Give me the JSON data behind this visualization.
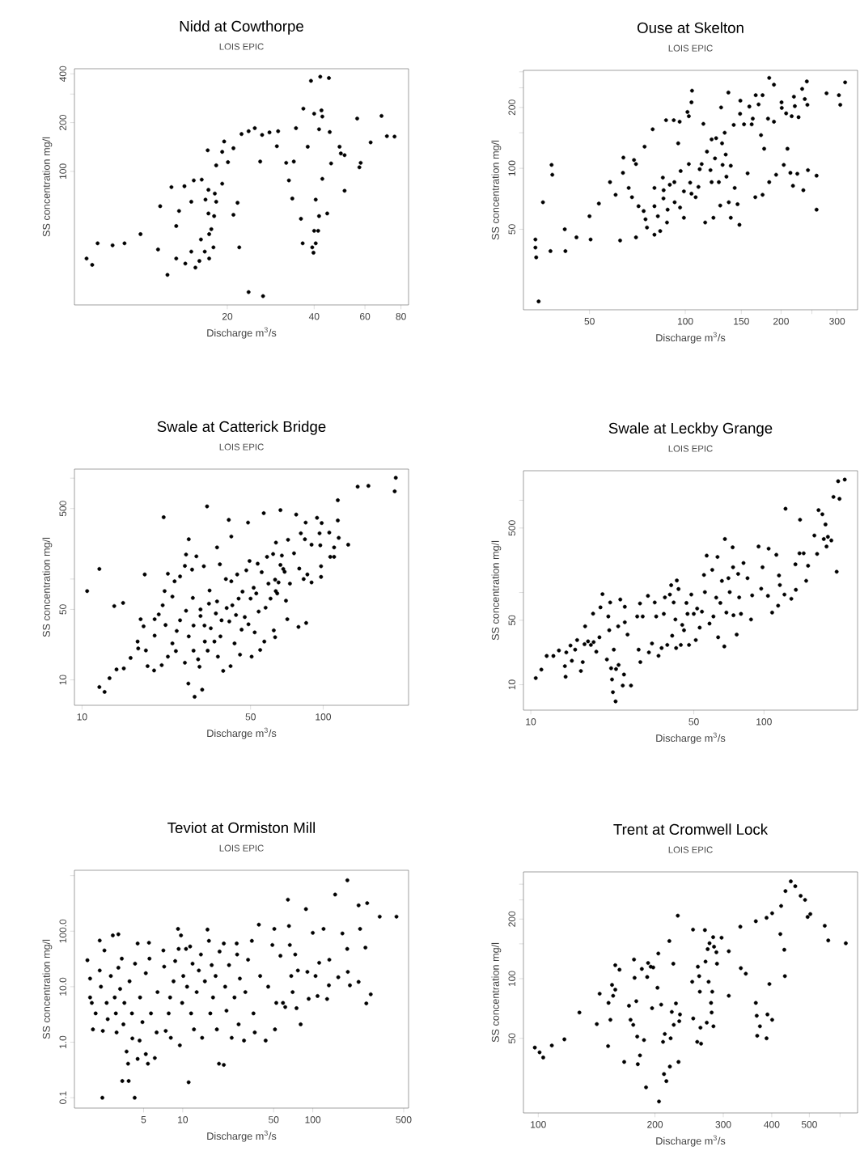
{
  "chart_data": [
    {
      "type": "scatter",
      "title": "Nidd at Cowthorpe",
      "subtitle": "LOIS EPIC",
      "xlabel": "Discharge m$^{3}$/s",
      "ylabel": "SS concentration mg/l",
      "log": "xy",
      "marker": "circle",
      "xlim": [
        5.9,
        85
      ],
      "ylim": [
        15,
        430
      ],
      "xticks": [
        20,
        40,
        60,
        80
      ],
      "yticks": [
        100,
        200,
        {
          "value": 300,
          "label": null
        },
        400
      ],
      "x": [
        6.5,
        6.8,
        7.1,
        8.0,
        8.8,
        10,
        11.5,
        11.7,
        12.4,
        12.8,
        13.3,
        13.3,
        13.6,
        14.2,
        14.3,
        15,
        15,
        15.3,
        15.5,
        16,
        16.3,
        16.2,
        16.7,
        16.8,
        17.2,
        17.2,
        17.3,
        17.6,
        17.3,
        17.9,
        18,
        18.3,
        18.1,
        18.3,
        17.1,
        19.2,
        19.2,
        19.5,
        20.1,
        21,
        21,
        21.7,
        22,
        22.4,
        23.7,
        23.7,
        24.9,
        26,
        26.4,
        26.6,
        28,
        30,
        29.7,
        32,
        32.7,
        33.6,
        34,
        34.6,
        36,
        36.5,
        36.7,
        38,
        39,
        39.4,
        39.8,
        40,
        40.5,
        40.5,
        40,
        41.3,
        41.6,
        41.6,
        42,
        42.4,
        42.7,
        42.7,
        44.4,
        45,
        45.3,
        45.8,
        49,
        49.5,
        51,
        51,
        57.4,
        58,
        56.4,
        62.8,
        68.5,
        71.5,
        76
      ],
      "series": [
        {
          "color": "#000000",
          "values": [
            29,
            26.5,
            36,
            35,
            36,
            41,
            33,
            61,
            23,
            80,
            29,
            46,
            57,
            81,
            27,
            32,
            65,
            88,
            25.5,
            28,
            89,
            38,
            32,
            67,
            77,
            55,
            41,
            44,
            29,
            34,
            53,
            65,
            73,
            109,
            135,
            84,
            132,
            153,
            114,
            139,
            54,
            64,
            34,
            170,
            177,
            18,
            185,
            115,
            168,
            17,
            174,
            177,
            143,
            113,
            88,
            68,
            115,
            185,
            51,
            36,
            244,
            142,
            362,
            34,
            31.5,
            227,
            67,
            36,
            43,
            43,
            53,
            182,
            384,
            238,
            218,
            90,
            55,
            377,
            175,
            112,
            142,
            129,
            126,
            76,
            106,
            113,
            212,
            151,
            220,
            165,
            164
          ]
        }
      ]
    },
    {
      "type": "scatter",
      "title": "Ouse at Skelton",
      "subtitle": "LOIS EPIC",
      "xlabel": "Discharge m$^{3}$/s",
      "ylabel": "SS concentration mg/l",
      "log": "xy",
      "marker": "circle",
      "xlim": [
        31,
        348
      ],
      "ylim": [
        20,
        305
      ],
      "xticks": [
        50,
        100,
        150,
        200,
        {
          "value": 250,
          "label": null
        },
        300
      ],
      "yticks": [
        50,
        100,
        {
          "value": 150,
          "label": null
        },
        200,
        {
          "value": 250,
          "label": null
        },
        {
          "value": 300,
          "label": null
        }
      ],
      "x": [
        34.6,
        33.8,
        33.8,
        34,
        35.7,
        37.7,
        38,
        38.2,
        41.8,
        42,
        45.5,
        50,
        50.4,
        53.5,
        58,
        60.4,
        62.4,
        63.7,
        63.9,
        66.4,
        68,
        69,
        70,
        70,
        71.3,
        74.5,
        74,
        75,
        75.8,
        79,
        80,
        80,
        80,
        82,
        83.4,
        85,
        85.4,
        85.5,
        87,
        87.6,
        88,
        89.4,
        92,
        92.4,
        92.6,
        95,
        96,
        96.7,
        96.3,
        99,
        99,
        101.6,
        102.6,
        102.6,
        103.6,
        104.6,
        105,
        104.6,
        107.8,
        110,
        111,
        112.6,
        114,
        115.5,
        117,
        120,
        121,
        121,
        122.6,
        124,
        125,
        127.5,
        128.8,
        129.6,
        130.5,
        131,
        133,
        134,
        134.7,
        136.6,
        137,
        139,
        139,
        142,
        143,
        146,
        148,
        149,
        148.7,
        153,
        157,
        159,
        161.7,
        163,
        166,
        166.5,
        170,
        173,
        175,
        175,
        177,
        182,
        183.6,
        183.6,
        190,
        190,
        193,
        200.7,
        201,
        204,
        207.5,
        209.5,
        214,
        216,
        218,
        221,
        219.5,
        225,
        227,
        235,
        237.5,
        233,
        241,
        242,
        243,
        258.6,
        258.6,
        278,
        304,
        307,
        318
      ],
      "series": [
        {
          "color": "#000000",
          "values": [
            22,
            44.5,
            40.6,
            36.3,
            68,
            39,
            104,
            93,
            50,
            39,
            45.6,
            58,
            44.5,
            67,
            85.5,
            74,
            44,
            95,
            113,
            80,
            72,
            110,
            105,
            45.6,
            65,
            128,
            61.5,
            56,
            51,
            156,
            65,
            47,
            80,
            58,
            49,
            90,
            71,
            78,
            173,
            54,
            62.5,
            83,
            173,
            85.5,
            68,
            133,
            170,
            97,
            64,
            57,
            77,
            190,
            181,
            105,
            85,
            212,
            242,
            75,
            72,
            81,
            99,
            105,
            166,
            54,
            121,
            98,
            139,
            85.5,
            57,
            112,
            141,
            85.5,
            65.5,
            200,
            133,
            104,
            150,
            117,
            91,
            237,
            68,
            103,
            57,
            164,
            80,
            66.5,
            52.6,
            216,
            186,
            165,
            94.5,
            202,
            165,
            176,
            72,
            230,
            207,
            146,
            230,
            74,
            125,
            176,
            280,
            85.5,
            259,
            170,
            93,
            212,
            199,
            104,
            187,
            125,
            95,
            181,
            82,
            203,
            226,
            94,
            179,
            78,
            220,
            247,
            269,
            206,
            98,
            92,
            62.5,
            235,
            230,
            206,
            266
          ]
        }
      ]
    },
    {
      "type": "scatter",
      "title": "Swale at Catterick Bridge",
      "subtitle": "LOIS EPIC",
      "xlabel": "Discharge m$^{3}$/s",
      "ylabel": "SS concentration mg/l",
      "log": "xy",
      "marker": "circle",
      "xlim": [
        9.3,
        226
      ],
      "ylim": [
        5.6,
        1230
      ],
      "xticks": [
        10,
        50,
        100
      ],
      "yticks": [
        10,
        50,
        {
          "value": 100,
          "label": null
        },
        500,
        {
          "value": 1000,
          "label": null
        }
      ],
      "x": [
        10.5,
        11.8,
        11.8,
        12.4,
        13,
        13.6,
        13.9,
        14.8,
        14.9,
        15.9,
        17,
        17.1,
        17.5,
        18,
        18.2,
        18.4,
        18.7,
        19.9,
        20,
        20,
        20.8,
        21.4,
        21.6,
        21.8,
        22,
        22.2,
        22.7,
        22.7,
        23.7,
        23.7,
        24.2,
        24.5,
        24.7,
        25.5,
        25.5,
        26.7,
        26.7,
        27,
        27,
        27.7,
        27.6,
        27.7,
        28.6,
        28.8,
        29,
        29,
        29.3,
        29.8,
        30.3,
        30.7,
        31,
        31.5,
        32,
        31,
        32.2,
        32.3,
        33,
        33.2,
        33.6,
        33.8,
        34.2,
        35.4,
        35.9,
        36.3,
        36.3,
        36.6,
        37.5,
        37.3,
        37.9,
        38.5,
        39.5,
        39.8,
        40.6,
        40.8,
        41.3,
        41.6,
        41.6,
        42,
        42.9,
        43.5,
        44,
        44.6,
        45.2,
        45.9,
        46.3,
        47.3,
        48,
        48.8,
        49,
        49.5,
        50,
        50.5,
        51.5,
        52,
        52.8,
        53.5,
        54,
        54.8,
        55.6,
        56.7,
        57,
        57.7,
        58.5,
        59.3,
        60.5,
        62,
        62.4,
        63.2,
        63.2,
        63.6,
        63.7,
        64.5,
        65.3,
        66.5,
        66.5,
        67.4,
        68.3,
        69.2,
        70.1,
        71,
        71.5,
        72.8,
        75.7,
        77.3,
        79,
        79.6,
        80.8,
        83,
        84,
        84.6,
        85,
        86,
        89.5,
        89.5,
        94.3,
        96.6,
        98,
        98,
        98.6,
        97.3,
        106,
        107,
        111,
        111,
        115,
        115,
        116,
        127,
        139,
        154,
        198,
        200
      ],
      "series": [
        {
          "color": "#000000",
          "values": [
            76,
            126,
            8.5,
            7.6,
            10.4,
            54,
            12.7,
            58,
            13,
            16.5,
            24,
            20.5,
            40,
            34,
            111,
            19.6,
            13.7,
            12.4,
            27.5,
            40,
            44.6,
            14,
            55,
            410,
            76,
            35,
            17,
            113,
            67,
            23,
            95,
            19.3,
            30.6,
            106,
            39,
            135,
            14.8,
            48.5,
            175,
            248,
            9.2,
            27,
            124,
            65,
            34.6,
            19.5,
            6.8,
            168,
            16,
            13.5,
            50,
            8,
            134,
            43,
            34.6,
            24,
            525,
            19.5,
            57,
            77,
            32.5,
            24,
            45.6,
            60,
            206,
            17,
            27,
            140,
            39,
            12.3,
            100,
            51.6,
            386,
            38,
            13.7,
            264,
            95,
            55,
            23,
            44,
            111,
            64,
            17.8,
            31.5,
            75,
            42,
            122,
            363,
            35.6,
            151,
            64,
            17,
            82,
            29.6,
            72,
            142,
            47.6,
            19.8,
            117,
            450,
            24,
            52,
            166,
            90,
            64,
            177,
            31,
            26.5,
            98.5,
            76,
            230,
            72,
            92.5,
            482,
            138,
            171,
            126,
            118,
            61,
            40,
            245,
            90,
            180,
            436,
            33.5,
            127,
            284,
            100,
            248,
            363,
            36.7,
            111,
            92.5,
            219,
            405,
            284,
            134,
            105,
            359,
            216,
            289,
            166,
            206,
            166,
            605,
            381,
            256,
            219,
            824,
            839,
            741,
            1009
          ]
        }
      ]
    },
    {
      "type": "scatter",
      "title": "Swale at Leckby Grange",
      "subtitle": "LOIS EPIC",
      "xlabel": "Discharge m$^{3}$/s",
      "ylabel": "SS concentration mg/l",
      "log": "xy",
      "marker": "circle",
      "xlim": [
        9.3,
        252
      ],
      "ylim": [
        5.3,
        2090
      ],
      "xticks": [
        10,
        50,
        100
      ],
      "yticks": [
        10,
        50,
        {
          "value": 100,
          "label": null
        },
        500,
        {
          "value": 1000,
          "label": null
        }
      ],
      "x": [
        10.5,
        11.1,
        11.7,
        12.5,
        13.2,
        14,
        14.1,
        14.2,
        14.8,
        15,
        15.5,
        15.8,
        16.4,
        16.7,
        17,
        17.1,
        17.6,
        18.1,
        18.5,
        18.6,
        19.1,
        19.7,
        19.9,
        20.3,
        21.2,
        21.5,
        21.7,
        21.9,
        22.1,
        22.3,
        22.5,
        22.7,
        23.1,
        23.2,
        23.7,
        23.8,
        24.2,
        24.8,
        25.1,
        25.3,
        25.3,
        26,
        26.9,
        28.6,
        29,
        29.4,
        29.5,
        30.2,
        31.8,
        32.1,
        33.1,
        34,
        34.5,
        35.3,
        36.4,
        37.2,
        37.6,
        38.5,
        39.5,
        40,
        40.4,
        41,
        41.7,
        42,
        42.3,
        43,
        44,
        44.6,
        45.4,
        46.5,
        47,
        47.7,
        48.8,
        50,
        51,
        51.7,
        53,
        54.2,
        55.3,
        55.8,
        56.8,
        58.4,
        60,
        60.7,
        62.4,
        63.6,
        63.2,
        65,
        66,
        67.6,
        68,
        69,
        70.4,
        71.3,
        73.4,
        73.7,
        74,
        76.4,
        77.5,
        78.3,
        79.7,
        81.7,
        85,
        88,
        89,
        94.8,
        97.3,
        98.6,
        104,
        104.7,
        108.4,
        113,
        115,
        116,
        117,
        122.4,
        123.7,
        131,
        136.4,
        137,
        142,
        142.8,
        148,
        151.7,
        154.6,
        164.5,
        169,
        171.4,
        178,
        180.5,
        183.6,
        185.5,
        188,
        194.5,
        198.6,
        205,
        208,
        210.8,
        222
      ],
      "series": [
        {
          "color": "#000000",
          "values": [
            11.8,
            14.6,
            20.5,
            20.5,
            23.5,
            15.9,
            12.2,
            22.4,
            26.6,
            18.2,
            24,
            30.5,
            14.1,
            17.6,
            27.5,
            43,
            29.5,
            27,
            59,
            29,
            22.8,
            32.7,
            69,
            96,
            18.8,
            55,
            39,
            78,
            15.1,
            11.4,
            8.3,
            24,
            6.6,
            14.8,
            43,
            16.4,
            84,
            9.8,
            12.9,
            70,
            47.6,
            35,
            9.8,
            55,
            24,
            76,
            17.6,
            55,
            92,
            22.4,
            28,
            78,
            55,
            20.6,
            25,
            58.6,
            88.5,
            27,
            95,
            120,
            34,
            78,
            51,
            25,
            135,
            109,
            27,
            44.5,
            39,
            77,
            58.6,
            27,
            95,
            58.6,
            30.5,
            67,
            41.6,
            62,
            155,
            101,
            251,
            46,
            176,
            55,
            88,
            32.7,
            243,
            77,
            133.6,
            26,
            380,
            60.6,
            143,
            101,
            309,
            188,
            56.6,
            35,
            159,
            88.5,
            58.6,
            209,
            143,
            51,
            93,
            315,
            110,
            188,
            92,
            299,
            60.6,
            256,
            72,
            153,
            120.5,
            95,
            809,
            85.5,
            202,
            107,
            266,
            615,
            266,
            134,
            195,
            415,
            262,
            782,
            705,
            380,
            547,
            315,
            401,
            367,
            1087,
            168,
            1608,
            1036,
            1676
          ]
        }
      ]
    },
    {
      "type": "scatter",
      "title": "Teviot at Ormiston Mill",
      "subtitle": "LOIS EPIC",
      "xlabel": "Discharge m$^{3}$/s",
      "ylabel": "SS concentration mg/l",
      "log": "xy",
      "marker": "circle",
      "xlim": [
        1.47,
        545
      ],
      "ylim": [
        0.065,
        1250
      ],
      "xticks": [
        5,
        10,
        50,
        100,
        500
      ],
      "yticks": [
        {
          "value": 0.1,
          "label": "0.1"
        },
        {
          "value": 1,
          "label": "1.0"
        },
        {
          "value": 10,
          "label": "10.0"
        },
        {
          "value": 100,
          "label": "100.0"
        },
        {
          "value": 1000,
          "label": null
        }
      ],
      "x": [
        1.85,
        1.94,
        1.94,
        2.0,
        2.04,
        2.14,
        2.3,
        2.3,
        2.35,
        2.41,
        2.43,
        2.5,
        2.6,
        2.65,
        2.8,
        2.9,
        3.0,
        3.06,
        3.1,
        3.2,
        3.2,
        3.3,
        3.4,
        3.43,
        3.5,
        3.56,
        3.7,
        3.8,
        3.84,
        3.9,
        4.07,
        4.1,
        4.27,
        4.3,
        4.5,
        4.5,
        4.66,
        4.7,
        4.9,
        5.2,
        5.2,
        5.4,
        5.5,
        5.55,
        5.7,
        6.1,
        6.3,
        6.4,
        7.1,
        7.2,
        7.4,
        7.8,
        8.0,
        8.1,
        8.5,
        8.75,
        9.2,
        9.3,
        9.5,
        9.7,
        9.9,
        10.1,
        10.6,
        10.8,
        11.1,
        11.4,
        11.6,
        11.9,
        12.2,
        12.8,
        13.3,
        13.8,
        14.1,
        14.8,
        15.5,
        15.9,
        16.3,
        16.7,
        17.1,
        17.9,
        18.3,
        19,
        19.2,
        20.7,
        20.7,
        21.2,
        21.7,
        22.7,
        23.8,
        25,
        26,
        26.2,
        26.9,
        27.5,
        29.6,
        30.3,
        31.8,
        34,
        35,
        35.8,
        38.5,
        39.4,
        43.4,
        45.4,
        48.9,
        50.6,
        51.2,
        52.4,
        56.4,
        59,
        61.4,
        64.4,
        65.6,
        66.6,
        68.3,
        70,
        73.3,
        75,
        76.8,
        80.7,
        88.6,
        90.9,
        93,
        100,
        105,
        108.8,
        112,
        121,
        128.8,
        133,
        134,
        148.6,
        157,
        169,
        184.5,
        184,
        186,
        193,
        225,
        225,
        231,
        254,
        258,
        262,
        279,
        327,
        440
      ],
      "series": [
        {
          "color": "#000000",
          "values": [
            30,
            14,
            6.4,
            5.1,
            1.7,
            3.3,
            68,
            19.6,
            10,
            0.1,
            1.6,
            45,
            5.1,
            2.6,
            15.6,
            84,
            6.4,
            3.3,
            1.5,
            88,
            22,
            9.1,
            32,
            0.2,
            2.1,
            5.1,
            0.68,
            0.41,
            0.2,
            12.5,
            3.3,
            1.17,
            0.1,
            26,
            60,
            0.5,
            1.07,
            6.4,
            2.3,
            17.5,
            0.61,
            0.41,
            62,
            32,
            3.3,
            0.52,
            1.5,
            8.0,
            45,
            23,
            1.6,
            3.3,
            6.4,
            1.2,
            12.5,
            29,
            110,
            48,
            0.88,
            84,
            5.1,
            15.6,
            48,
            10,
            0.19,
            53,
            3.3,
            26,
            1.7,
            8,
            19.6,
            38,
            1.2,
            12.5,
            107,
            67,
            3.3,
            24.5,
            6.4,
            15.6,
            1.7,
            0.41,
            43,
            0.39,
            60,
            10,
            3.7,
            24.5,
            1.2,
            6.4,
            60,
            38,
            2.1,
            14,
            1.07,
            8,
            30.6,
            67,
            3.3,
            1.5,
            131,
            15.6,
            1.07,
            10,
            56.5,
            110,
            1.7,
            5.1,
            36,
            5.1,
            4.3,
            370,
            124,
            56.5,
            15.6,
            8,
            38,
            4.1,
            19.6,
            2.1,
            250,
            18.5,
            6.05,
            93.5,
            15.6,
            6.8,
            27,
            110,
            6,
            10.6,
            30.6,
            457,
            14.8,
            91,
            826,
            48,
            18.5,
            10.6,
            292,
            12.2,
            110,
            50.6,
            5.0,
            320,
            7.3,
            183,
            183
          ]
        }
      ]
    },
    {
      "type": "scatter",
      "title": "Trent at Cromwell Lock",
      "subtitle": "LOIS EPIC",
      "xlabel": "Discharge m$^{3}$/s",
      "ylabel": "SS concentration mg/l",
      "log": "xy",
      "marker": "circle",
      "xlim": [
        91.6,
        666
      ],
      "ylim": [
        21,
        346
      ],
      "xticks": [
        100,
        200,
        300,
        400,
        500,
        {
          "value": 600,
          "label": null
        }
      ],
      "yticks": [
        50,
        100,
        {
          "value": 150,
          "label": null
        },
        200,
        {
          "value": 250,
          "label": null
        },
        {
          "value": 300,
          "label": null
        }
      ],
      "x": [
        98,
        100.8,
        103,
        108.4,
        116.8,
        127.7,
        141.6,
        144,
        151.4,
        151.8,
        153.5,
        155,
        156,
        158,
        158,
        162,
        166.6,
        171.4,
        173,
        175.8,
        176.6,
        177.2,
        179,
        180,
        180.6,
        183,
        185,
        187.4,
        189.7,
        191,
        192,
        195,
        196.6,
        198,
        203,
        204,
        204.8,
        207.5,
        209.8,
        211,
        212,
        214,
        217.8,
        218.5,
        219.5,
        221,
        223,
        223.6,
        226.5,
        229,
        230,
        231,
        232,
        249.5,
        250.7,
        251,
        257,
        258,
        260,
        261,
        262,
        263,
        269,
        270,
        272,
        273.5,
        275,
        276.5,
        279,
        280,
        281,
        282.5,
        283,
        284,
        288,
        289,
        297,
        310,
        310,
        332,
        333,
        343,
        364,
        364,
        366,
        367,
        373,
        388,
        388,
        390,
        394.6,
        401,
        401,
        421,
        423,
        431,
        432.5,
        434,
        448,
        460,
        475,
        487.5,
        495,
        503,
        548,
        559.5,
        621
      ],
      "series": [
        {
          "color": "#000000",
          "values": [
            44.9,
            42.5,
            40,
            46,
            49.4,
            67.5,
            59,
            84,
            45.7,
            75.5,
            62,
            93,
            82,
            88,
            117,
            111,
            38,
            73,
            62,
            58.5,
            125,
            101,
            77,
            51,
            37,
            41,
            112,
            49,
            28.3,
            102,
            120,
            115,
            71,
            114,
            90,
            134,
            24,
            74,
            48,
            33,
            52.6,
            30.4,
            155,
            36,
            50,
            68,
            119,
            58.5,
            75,
            208,
            38,
            61,
            66,
            96.5,
            177,
            63,
            48,
            115,
            103,
            86,
            56.6,
            47,
            176,
            122,
            60,
            141,
            96.5,
            151,
            75.5,
            67.5,
            86,
            162,
            57.5,
            145,
            136,
            119,
            161,
            137.6,
            82,
            183,
            113,
            106,
            195,
            75.5,
            65,
            51.5,
            57.5,
            50,
            203,
            66,
            94,
            62,
            214,
            168,
            233,
            140,
            103,
            277,
            310,
            293,
            262,
            250,
            205,
            212,
            185,
            156,
            151
          ]
        }
      ]
    }
  ]
}
